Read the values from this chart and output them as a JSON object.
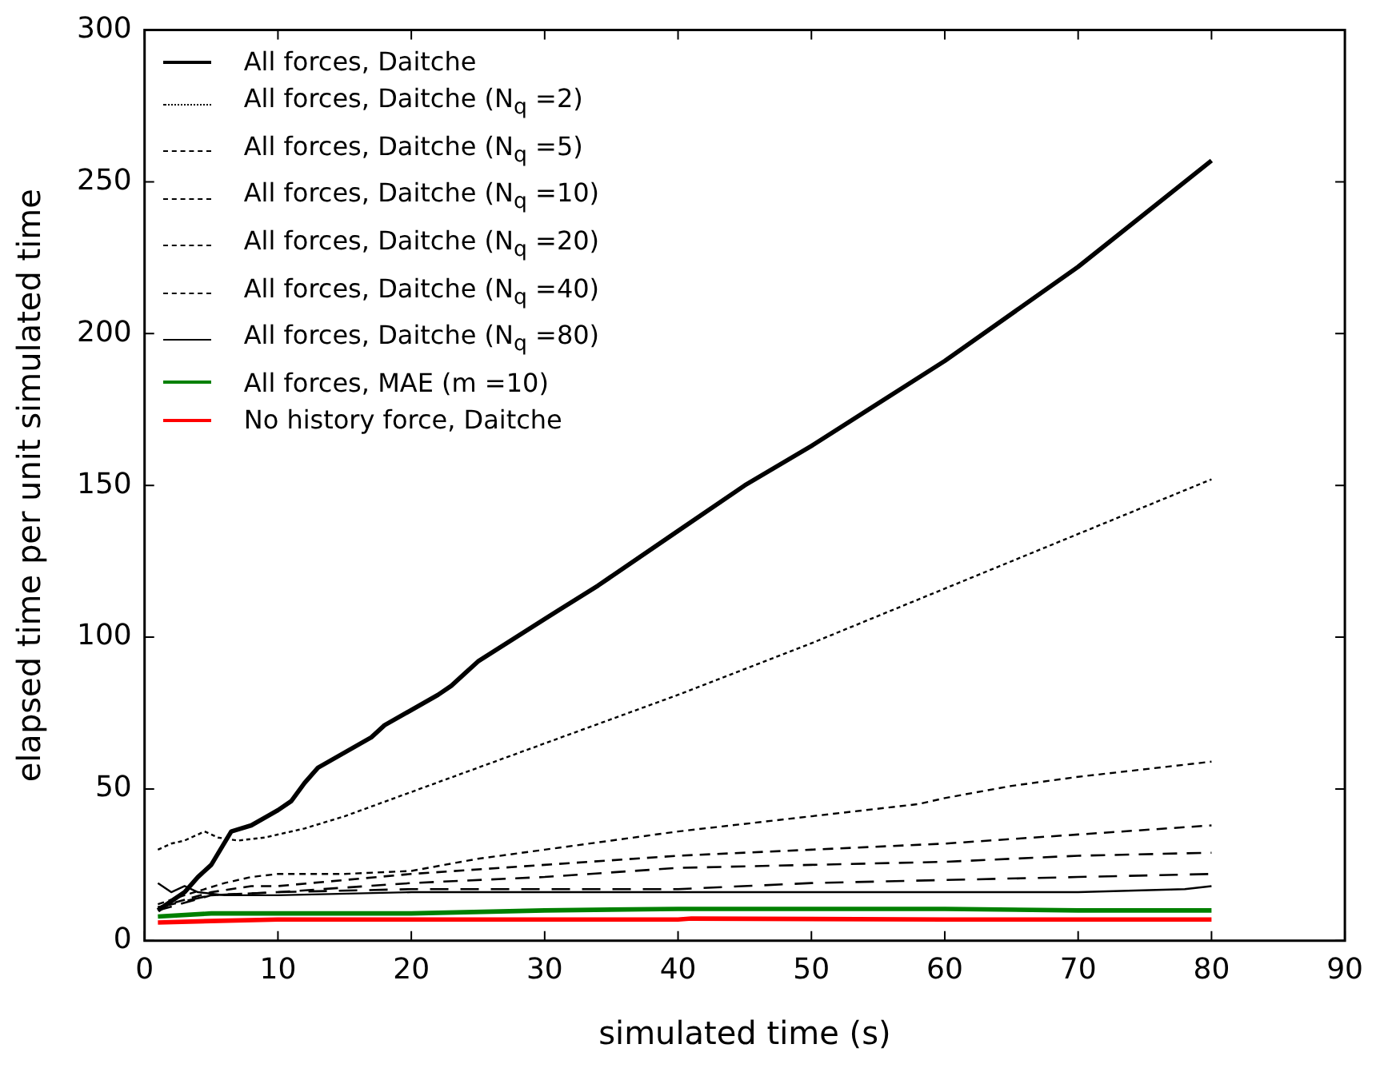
{
  "chart_data": {
    "type": "line",
    "xlabel": "simulated time (s)",
    "ylabel": "elapsed time per unit simulated time",
    "xlim": [
      0,
      90
    ],
    "xticks": [
      0,
      10,
      20,
      30,
      40,
      50,
      60,
      70,
      80,
      90
    ],
    "ylim": [
      0,
      300
    ],
    "yticks": [
      0,
      50,
      100,
      150,
      200,
      250,
      300
    ],
    "grid": false,
    "legend": "top left",
    "marker": "none",
    "series": [
      {
        "name": "All forces, Daitche",
        "color": "#000000",
        "line_style": "solid",
        "x": [
          1,
          2,
          3,
          4,
          5,
          6.5,
          8,
          10,
          11,
          12,
          13,
          15,
          17,
          18,
          20,
          22,
          23,
          24,
          25,
          30,
          34,
          40,
          45,
          50,
          60,
          70,
          80
        ],
        "values": [
          10,
          13,
          16,
          21,
          25,
          36,
          38,
          43,
          46,
          52,
          57,
          62,
          67,
          71,
          76,
          81,
          84,
          88,
          92,
          106,
          117,
          135,
          150,
          163,
          191,
          222,
          257
        ]
      },
      {
        "name": "All forces, Daitche (N$_{q}$ =2)",
        "color": "#000000",
        "line_style": "dotted",
        "x": [
          1,
          2,
          3,
          4.5,
          5.5,
          7,
          9,
          12,
          15,
          20,
          25,
          30,
          40,
          50,
          60,
          70,
          80
        ],
        "values": [
          30,
          32,
          33,
          36,
          34,
          33,
          34,
          37,
          41,
          49,
          57,
          65,
          81,
          98,
          116,
          134,
          152
        ]
      },
      {
        "name": "All forces, Daitche (N$_{q}$ =5)",
        "color": "#000000",
        "line_style": "dashed",
        "x": [
          1,
          3,
          6,
          8,
          10,
          15,
          20,
          25,
          30,
          35,
          40,
          50,
          58,
          60,
          65,
          70,
          80
        ],
        "values": [
          12,
          15,
          19,
          21,
          22,
          22,
          23,
          27,
          30,
          33,
          36,
          41,
          45,
          47,
          51,
          54,
          59
        ]
      },
      {
        "name": "All forces, Daitche (N$_{q}$ =10)",
        "color": "#000000",
        "line_style": "dashed",
        "x": [
          1,
          5,
          8,
          10,
          15,
          20,
          30,
          40,
          50,
          60,
          70,
          80
        ],
        "values": [
          11,
          16,
          18,
          18,
          20,
          22,
          25,
          28,
          30,
          32,
          35,
          38
        ]
      },
      {
        "name": "All forces, Daitche (N$_{q}$ =20)",
        "color": "#000000",
        "line_style": "dashed",
        "x": [
          1,
          5,
          10,
          20,
          30,
          40,
          50,
          60,
          70,
          80
        ],
        "values": [
          10,
          15,
          16,
          19,
          21,
          24,
          25,
          26,
          28,
          29
        ]
      },
      {
        "name": "All forces, Daitche (N$_{q}$ =40)",
        "color": "#000000",
        "line_style": "dashed",
        "x": [
          1,
          5,
          10,
          20,
          30,
          40,
          50,
          60,
          70,
          80
        ],
        "values": [
          11,
          15,
          16,
          17,
          17,
          17,
          19,
          20,
          21,
          22
        ]
      },
      {
        "name": "All forces, Daitche (N$_{q}$ =80)",
        "color": "#000000",
        "line_style": "solid",
        "x": [
          1,
          2,
          3,
          4,
          6,
          10,
          20,
          30,
          40,
          50,
          60,
          70,
          78,
          80
        ],
        "values": [
          19,
          16,
          18,
          16,
          15,
          15,
          16,
          16,
          16,
          16,
          16,
          16,
          17,
          18
        ]
      },
      {
        "name": "All forces, MAE (m =10)",
        "color": "#008000",
        "line_style": "solid",
        "x": [
          1,
          5,
          10,
          20,
          30,
          40,
          50,
          60,
          70,
          80
        ],
        "values": [
          8,
          9,
          9,
          9,
          10,
          10.5,
          10.5,
          10.5,
          10,
          10
        ]
      },
      {
        "name": "No history force, Daitche",
        "color": "#ff0000",
        "line_style": "solid",
        "x": [
          1,
          5,
          10,
          20,
          30,
          40,
          41,
          60,
          80
        ],
        "values": [
          6,
          6.5,
          7,
          7,
          7,
          7,
          7.3,
          7,
          7
        ]
      }
    ]
  }
}
